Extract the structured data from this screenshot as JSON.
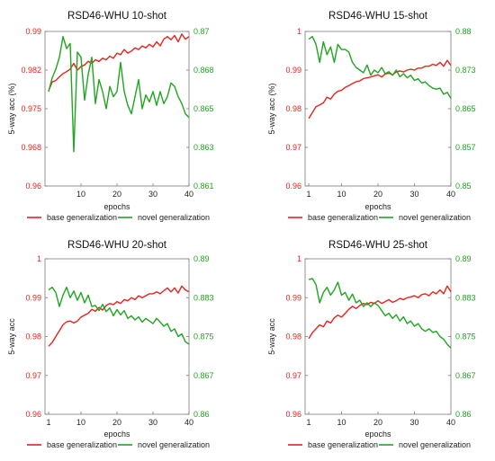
{
  "chart_data": [
    {
      "type": "line",
      "title": "RSD46-WHU 10-shot",
      "xlabel": "epochs",
      "ylabel": "5-way acc (%)",
      "xlim": [
        0,
        40
      ],
      "xticks": [
        "10",
        "20",
        "30",
        "40"
      ],
      "ylim_left": [
        0.96,
        0.99
      ],
      "yticks_left": [
        "0.96",
        "0.968",
        "0.975",
        "0.982",
        "0.99"
      ],
      "ylim_right": [
        0.861,
        0.87
      ],
      "yticks_right": [
        "0.861",
        "0.863",
        "0.865",
        "0.868",
        "0.87"
      ],
      "left_color": "#e8231c",
      "right_color": "#1fa51f",
      "grid": false,
      "legend_placement": "bottom",
      "series": [
        {
          "name": "base generalization",
          "axis": "left",
          "color": "#e8231c",
          "x": [
            1,
            2,
            3,
            4,
            5,
            6,
            7,
            8,
            9,
            10,
            11,
            12,
            13,
            14,
            15,
            16,
            17,
            18,
            19,
            20,
            21,
            22,
            23,
            24,
            25,
            26,
            27,
            28,
            29,
            30,
            31,
            32,
            33,
            34,
            35,
            36,
            37,
            38,
            39,
            40
          ],
          "values": [
            0.9785,
            0.9802,
            0.9805,
            0.9812,
            0.9818,
            0.9822,
            0.9827,
            0.9838,
            0.9825,
            0.9832,
            0.9835,
            0.9842,
            0.9838,
            0.9845,
            0.9842,
            0.9848,
            0.9845,
            0.9852,
            0.9848,
            0.9858,
            0.9855,
            0.9865,
            0.9858,
            0.9862,
            0.9868,
            0.9865,
            0.9872,
            0.9868,
            0.9875,
            0.987,
            0.988,
            0.9872,
            0.9885,
            0.989,
            0.9884,
            0.9892,
            0.988,
            0.9895,
            0.9885,
            0.989
          ]
        },
        {
          "name": "novel generalization",
          "axis": "right",
          "color": "#1fa51f",
          "x": [
            1,
            2,
            3,
            4,
            5,
            6,
            7,
            8,
            9,
            10,
            11,
            12,
            13,
            14,
            15,
            16,
            17,
            18,
            19,
            20,
            21,
            22,
            23,
            24,
            25,
            26,
            27,
            28,
            29,
            30,
            31,
            32,
            33,
            34,
            35,
            36,
            37,
            38,
            39,
            40
          ],
          "values": [
            0.8665,
            0.8673,
            0.8678,
            0.8685,
            0.8697,
            0.869,
            0.8693,
            0.863,
            0.8688,
            0.8685,
            0.866,
            0.8675,
            0.8685,
            0.8658,
            0.8672,
            0.8665,
            0.8655,
            0.8668,
            0.8662,
            0.8665,
            0.8682,
            0.8665,
            0.8657,
            0.8652,
            0.8662,
            0.8672,
            0.8655,
            0.8663,
            0.8659,
            0.8665,
            0.8657,
            0.8665,
            0.8658,
            0.8662,
            0.867,
            0.8668,
            0.8662,
            0.8658,
            0.8652,
            0.865
          ]
        }
      ]
    },
    {
      "type": "line",
      "title": "RSD46-WHU 15-shot",
      "xlabel": "epochs",
      "ylabel": "5-way acc (%)",
      "xlim": [
        0,
        40
      ],
      "xticks": [
        "1",
        "10",
        "20",
        "30",
        "40"
      ],
      "ylim_left": [
        0.96,
        1.0
      ],
      "yticks_left": [
        "0.96",
        "0.97",
        "0.98",
        "0.99",
        "1"
      ],
      "ylim_right": [
        0.85,
        0.88
      ],
      "yticks_right": [
        "0.85",
        "0.857",
        "0.865",
        "0.873",
        "0.88"
      ],
      "left_color": "#e8231c",
      "right_color": "#1fa51f",
      "grid": false,
      "legend_placement": "bottom",
      "series": [
        {
          "name": "base generalization",
          "axis": "left",
          "color": "#e8231c",
          "x": [
            1,
            2,
            3,
            4,
            5,
            6,
            7,
            8,
            9,
            10,
            11,
            12,
            13,
            14,
            15,
            16,
            17,
            18,
            19,
            20,
            21,
            22,
            23,
            24,
            25,
            26,
            27,
            28,
            29,
            30,
            31,
            32,
            33,
            34,
            35,
            36,
            37,
            38,
            39,
            40
          ],
          "values": [
            0.9775,
            0.979,
            0.9805,
            0.981,
            0.9815,
            0.983,
            0.9825,
            0.9838,
            0.9845,
            0.9848,
            0.9855,
            0.986,
            0.9865,
            0.987,
            0.9872,
            0.9878,
            0.988,
            0.9882,
            0.9885,
            0.9888,
            0.9882,
            0.989,
            0.9892,
            0.9888,
            0.9895,
            0.9898,
            0.9895,
            0.99,
            0.9902,
            0.99,
            0.9905,
            0.9905,
            0.991,
            0.991,
            0.9915,
            0.9912,
            0.992,
            0.991,
            0.9925,
            0.9912
          ]
        },
        {
          "name": "novel generalization",
          "axis": "right",
          "color": "#1fa51f",
          "x": [
            1,
            2,
            3,
            4,
            5,
            6,
            7,
            8,
            9,
            10,
            11,
            12,
            13,
            14,
            15,
            16,
            17,
            18,
            19,
            20,
            21,
            22,
            23,
            24,
            25,
            26,
            27,
            28,
            29,
            30,
            31,
            32,
            33,
            34,
            35,
            36,
            37,
            38,
            39,
            40
          ],
          "values": [
            0.8785,
            0.879,
            0.8775,
            0.874,
            0.878,
            0.8755,
            0.877,
            0.874,
            0.8775,
            0.8765,
            0.8765,
            0.876,
            0.874,
            0.873,
            0.8725,
            0.872,
            0.8735,
            0.8715,
            0.8725,
            0.872,
            0.873,
            0.8718,
            0.8722,
            0.8715,
            0.8725,
            0.8712,
            0.8718,
            0.871,
            0.8715,
            0.8705,
            0.8708,
            0.87,
            0.8702,
            0.8695,
            0.869,
            0.8688,
            0.869,
            0.8678,
            0.8682,
            0.867
          ]
        }
      ]
    },
    {
      "type": "line",
      "title": "RSD46-WHU 20-shot",
      "xlabel": "epochs",
      "ylabel": "5-way acc",
      "xlim": [
        0,
        40
      ],
      "xticks": [
        "1",
        "10",
        "20",
        "30",
        "40"
      ],
      "ylim_left": [
        0.96,
        1.0
      ],
      "yticks_left": [
        "0.96",
        "0.97",
        "0.98",
        "0.99",
        "1"
      ],
      "ylim_right": [
        0.86,
        0.89
      ],
      "yticks_right": [
        "0.86",
        "0.867",
        "0.875",
        "0.883",
        "0.89"
      ],
      "left_color": "#e8231c",
      "right_color": "#1fa51f",
      "grid": false,
      "legend_placement": "bottom",
      "series": [
        {
          "name": "base generalization",
          "axis": "left",
          "color": "#e8231c",
          "x": [
            1,
            2,
            3,
            4,
            5,
            6,
            7,
            8,
            9,
            10,
            11,
            12,
            13,
            14,
            15,
            16,
            17,
            18,
            19,
            20,
            21,
            22,
            23,
            24,
            25,
            26,
            27,
            28,
            29,
            30,
            31,
            32,
            33,
            34,
            35,
            36,
            37,
            38,
            39,
            40
          ],
          "values": [
            0.9775,
            0.9785,
            0.98,
            0.9815,
            0.983,
            0.9838,
            0.984,
            0.9835,
            0.984,
            0.985,
            0.9855,
            0.986,
            0.987,
            0.9865,
            0.9875,
            0.9868,
            0.988,
            0.9885,
            0.9882,
            0.989,
            0.9885,
            0.9895,
            0.9892,
            0.99,
            0.9895,
            0.9905,
            0.99,
            0.9905,
            0.991,
            0.991,
            0.9915,
            0.991,
            0.9918,
            0.9925,
            0.9915,
            0.9925,
            0.9912,
            0.993,
            0.992,
            0.9915
          ]
        },
        {
          "name": "novel generalization",
          "axis": "right",
          "color": "#1fa51f",
          "x": [
            1,
            2,
            3,
            4,
            5,
            6,
            7,
            8,
            9,
            10,
            11,
            12,
            13,
            14,
            15,
            16,
            17,
            18,
            19,
            20,
            21,
            22,
            23,
            24,
            25,
            26,
            27,
            28,
            29,
            30,
            31,
            32,
            33,
            34,
            35,
            36,
            37,
            38,
            39,
            40
          ],
          "values": [
            0.884,
            0.8845,
            0.8835,
            0.8808,
            0.883,
            0.8845,
            0.8825,
            0.8838,
            0.882,
            0.8835,
            0.8815,
            0.883,
            0.8808,
            0.881,
            0.88,
            0.8812,
            0.8798,
            0.8805,
            0.879,
            0.8802,
            0.8792,
            0.88,
            0.8785,
            0.879,
            0.8782,
            0.8788,
            0.8778,
            0.8785,
            0.878,
            0.8775,
            0.8785,
            0.8778,
            0.877,
            0.8775,
            0.876,
            0.8765,
            0.875,
            0.8755,
            0.874,
            0.8735
          ]
        }
      ]
    },
    {
      "type": "line",
      "title": "RSD46-WHU 25-shot",
      "xlabel": "epochs",
      "ylabel": "5-way acc",
      "xlim": [
        0,
        40
      ],
      "xticks": [
        "1",
        "10",
        "20",
        "30",
        "40"
      ],
      "ylim_left": [
        0.96,
        1.0
      ],
      "yticks_left": [
        "0.96",
        "0.97",
        "0.98",
        "0.99",
        "1"
      ],
      "ylim_right": [
        0.86,
        0.89
      ],
      "yticks_right": [
        "0.86",
        "0.867",
        "0.875",
        "0.883",
        "0.89"
      ],
      "left_color": "#e8231c",
      "right_color": "#1fa51f",
      "grid": false,
      "legend_placement": "bottom",
      "series": [
        {
          "name": "base generalization",
          "axis": "left",
          "color": "#e8231c",
          "x": [
            1,
            2,
            3,
            4,
            5,
            6,
            7,
            8,
            9,
            10,
            11,
            12,
            13,
            14,
            15,
            16,
            17,
            18,
            19,
            20,
            21,
            22,
            23,
            24,
            25,
            26,
            27,
            28,
            29,
            30,
            31,
            32,
            33,
            34,
            35,
            36,
            37,
            38,
            39,
            40
          ],
          "values": [
            0.9795,
            0.981,
            0.982,
            0.983,
            0.9825,
            0.984,
            0.9835,
            0.9848,
            0.9855,
            0.985,
            0.986,
            0.987,
            0.9878,
            0.9872,
            0.988,
            0.9885,
            0.9882,
            0.9888,
            0.9885,
            0.9892,
            0.9885,
            0.989,
            0.9895,
            0.9888,
            0.9892,
            0.9898,
            0.9895,
            0.99,
            0.9902,
            0.9905,
            0.99,
            0.9908,
            0.991,
            0.9905,
            0.9915,
            0.991,
            0.992,
            0.991,
            0.993,
            0.9915
          ]
        },
        {
          "name": "novel generalization",
          "axis": "right",
          "color": "#1fa51f",
          "x": [
            1,
            2,
            3,
            4,
            5,
            6,
            7,
            8,
            9,
            10,
            11,
            12,
            13,
            14,
            15,
            16,
            17,
            18,
            19,
            20,
            21,
            22,
            23,
            24,
            25,
            26,
            27,
            28,
            29,
            30,
            31,
            32,
            33,
            34,
            35,
            36,
            37,
            38,
            39,
            40
          ],
          "values": [
            0.886,
            0.8862,
            0.885,
            0.8815,
            0.8835,
            0.8845,
            0.883,
            0.884,
            0.8855,
            0.883,
            0.8835,
            0.882,
            0.8832,
            0.8815,
            0.882,
            0.8808,
            0.8815,
            0.8808,
            0.8815,
            0.881,
            0.88,
            0.879,
            0.8795,
            0.8785,
            0.8792,
            0.878,
            0.8788,
            0.8775,
            0.878,
            0.877,
            0.8775,
            0.8765,
            0.876,
            0.8765,
            0.8758,
            0.876,
            0.875,
            0.8745,
            0.8735,
            0.8728
          ]
        }
      ]
    }
  ]
}
